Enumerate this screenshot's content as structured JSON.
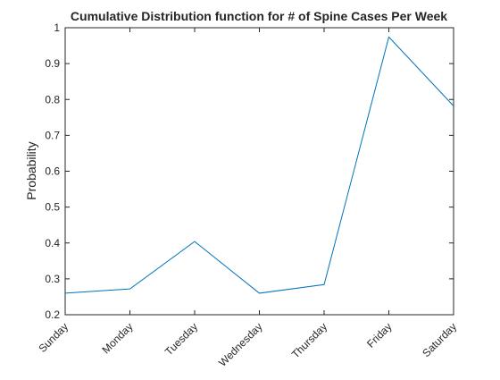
{
  "chart_data": {
    "type": "line",
    "title": "Cumulative Distribution function for # of Spine Cases Per Week",
    "xlabel": "",
    "ylabel": "Probability",
    "categories": [
      "Sunday",
      "Monday",
      "Tuesday",
      "Wednesday",
      "Thursday",
      "Friday",
      "Saturday"
    ],
    "series": [
      {
        "values": [
          0.26,
          0.272,
          0.404,
          0.26,
          0.284,
          0.974,
          0.782
        ]
      }
    ],
    "ylim": [
      0.2,
      1.0
    ],
    "yticks": [
      0.2,
      0.3,
      0.4,
      0.5,
      0.6,
      0.7,
      0.8,
      0.9,
      1
    ],
    "ytick_labels": [
      "0.2",
      "0.3",
      "0.4",
      "0.5",
      "0.6",
      "0.7",
      "0.8",
      "0.9",
      "1"
    ],
    "grid": false,
    "colors": {
      "line": "#0072BD",
      "axis": "#262626",
      "background": "#ffffff"
    }
  }
}
